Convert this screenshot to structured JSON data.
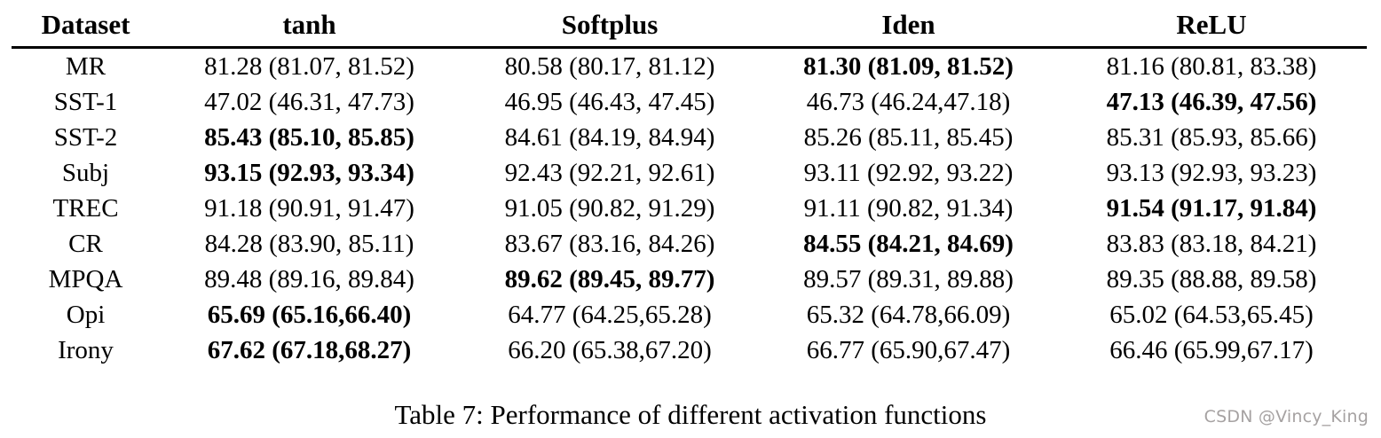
{
  "table": {
    "columns": [
      "Dataset",
      "tanh",
      "Softplus",
      "Iden",
      "ReLU"
    ],
    "rows": [
      {
        "dataset": "MR",
        "cells": [
          {
            "text": "81.28 (81.07, 81.52)",
            "bold": false
          },
          {
            "text": "80.58 (80.17, 81.12)",
            "bold": false
          },
          {
            "text": "81.30 (81.09, 81.52)",
            "bold": true
          },
          {
            "text": "81.16 (80.81, 83.38)",
            "bold": false
          }
        ]
      },
      {
        "dataset": "SST-1",
        "cells": [
          {
            "text": "47.02 (46.31, 47.73)",
            "bold": false
          },
          {
            "text": "46.95 (46.43, 47.45)",
            "bold": false
          },
          {
            "text": "46.73 (46.24,47.18)",
            "bold": false
          },
          {
            "text": "47.13 (46.39, 47.56)",
            "bold": true
          }
        ]
      },
      {
        "dataset": "SST-2",
        "cells": [
          {
            "text": "85.43 (85.10, 85.85)",
            "bold": true
          },
          {
            "text": "84.61 (84.19, 84.94)",
            "bold": false
          },
          {
            "text": "85.26 (85.11, 85.45)",
            "bold": false
          },
          {
            "text": "85.31 (85.93, 85.66)",
            "bold": false
          }
        ]
      },
      {
        "dataset": "Subj",
        "cells": [
          {
            "text": "93.15 (92.93, 93.34)",
            "bold": true
          },
          {
            "text": "92.43 (92.21, 92.61)",
            "bold": false
          },
          {
            "text": "93.11 (92.92, 93.22)",
            "bold": false
          },
          {
            "text": "93.13 (92.93, 93.23)",
            "bold": false
          }
        ]
      },
      {
        "dataset": "TREC",
        "cells": [
          {
            "text": "91.18 (90.91, 91.47)",
            "bold": false
          },
          {
            "text": "91.05 (90.82, 91.29)",
            "bold": false
          },
          {
            "text": "91.11 (90.82, 91.34)",
            "bold": false
          },
          {
            "text": "91.54 (91.17, 91.84)",
            "bold": true
          }
        ]
      },
      {
        "dataset": "CR",
        "cells": [
          {
            "text": "84.28 (83.90, 85.11)",
            "bold": false
          },
          {
            "text": "83.67 (83.16, 84.26)",
            "bold": false
          },
          {
            "text": "84.55 (84.21, 84.69)",
            "bold": true
          },
          {
            "text": "83.83 (83.18, 84.21)",
            "bold": false
          }
        ]
      },
      {
        "dataset": "MPQA",
        "cells": [
          {
            "text": "89.48 (89.16, 89.84)",
            "bold": false
          },
          {
            "text": "89.62 (89.45, 89.77)",
            "bold": true
          },
          {
            "text": "89.57 (89.31, 89.88)",
            "bold": false
          },
          {
            "text": "89.35 (88.88, 89.58)",
            "bold": false
          }
        ]
      },
      {
        "dataset": "Opi",
        "cells": [
          {
            "text": "65.69 (65.16,66.40)",
            "bold": true
          },
          {
            "text": "64.77 (64.25,65.28)",
            "bold": false
          },
          {
            "text": "65.32 (64.78,66.09)",
            "bold": false
          },
          {
            "text": "65.02 (64.53,65.45)",
            "bold": false
          }
        ]
      },
      {
        "dataset": "Irony",
        "cells": [
          {
            "text": "67.62 (67.18,68.27)",
            "bold": true
          },
          {
            "text": "66.20 (65.38,67.20)",
            "bold": false
          },
          {
            "text": "66.77 (65.90,67.47)",
            "bold": false
          },
          {
            "text": "66.46 (65.99,67.17)",
            "bold": false
          }
        ]
      }
    ]
  },
  "caption": "Table 7: Performance of different activation functions",
  "watermark": "CSDN @Vincy_King",
  "colors": {
    "text": "#000000",
    "rule": "#000000",
    "watermark": "#a6a2a2",
    "background": "#ffffff"
  }
}
